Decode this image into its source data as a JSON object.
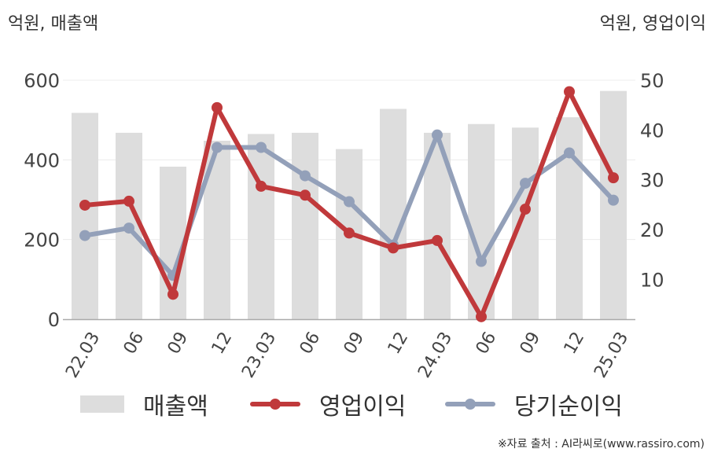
{
  "units": {
    "left": "억원, 매출액",
    "right": "억원, 영업이익"
  },
  "colors": {
    "revenue": "#dddddd",
    "operating_profit": "#c0393b",
    "net_profit": "#93a0b9"
  },
  "legend": {
    "revenue": "매출액",
    "operating_profit": "영업이익",
    "net_profit": "당기순이익"
  },
  "source": "※자료 출처 : AI라씨로(www.rassiro.com)",
  "chart_data": {
    "type": "bar",
    "categories": [
      "22.03",
      "06",
      "09",
      "12",
      "23.03",
      "06",
      "09",
      "12",
      "24.03",
      "06",
      "09",
      "12",
      "25.03"
    ],
    "y_left": {
      "ticks": [
        0,
        200,
        400,
        600
      ],
      "ylim": [
        0,
        600
      ]
    },
    "y_right": {
      "ticks": [
        10,
        20,
        30,
        40,
        50
      ],
      "ylim": [
        2,
        50
      ]
    },
    "grid": true,
    "legend_position": "bottom",
    "series": [
      {
        "name": "매출액",
        "type": "bar",
        "axis": "left",
        "values": [
          518,
          468,
          383,
          448,
          465,
          468,
          427,
          528,
          468,
          490,
          481,
          507,
          573
        ]
      },
      {
        "name": "영업이익",
        "type": "line",
        "axis": "right",
        "values": [
          24.9,
          25.7,
          7.0,
          44.5,
          28.7,
          26.9,
          19.3,
          16.3,
          17.8,
          2.5,
          24.1,
          47.7,
          30.4
        ]
      },
      {
        "name": "당기순이익",
        "type": "line",
        "axis": "right",
        "values": [
          18.8,
          20.3,
          10.8,
          36.5,
          36.5,
          30.8,
          25.6,
          16.9,
          39.0,
          13.6,
          29.3,
          35.4,
          25.9
        ]
      }
    ]
  }
}
